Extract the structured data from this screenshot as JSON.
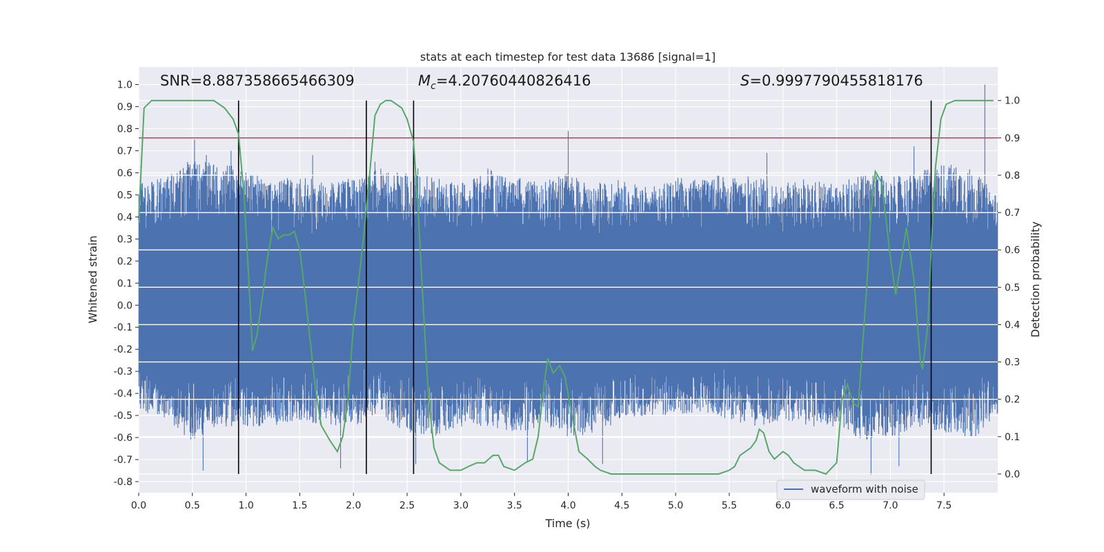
{
  "chart_data": {
    "type": "line",
    "title": "stats at each timestep for test data 13686 [signal=1]",
    "xlabel": "Time (s)",
    "ylabel_left": "Whitened strain",
    "ylabel_right": "Detection probability",
    "xlim": [
      0.0,
      8.0
    ],
    "ylim_left": [
      -0.85,
      1.08
    ],
    "ylim_right": [
      -0.05,
      1.09
    ],
    "x_ticks": [
      "0.0",
      "0.5",
      "1.0",
      "1.5",
      "2.0",
      "2.5",
      "3.0",
      "3.5",
      "4.0",
      "4.5",
      "5.0",
      "5.5",
      "6.0",
      "6.5",
      "7.0",
      "7.5"
    ],
    "y_left_ticks": [
      "-0.8",
      "-0.7",
      "-0.6",
      "-0.5",
      "-0.4",
      "-0.3",
      "-0.2",
      "-0.1",
      "0.0",
      "0.1",
      "0.2",
      "0.3",
      "0.4",
      "0.5",
      "0.6",
      "0.7",
      "0.8",
      "0.9",
      "1.0"
    ],
    "y_right_ticks": [
      "0.0",
      "0.1",
      "0.2",
      "0.3",
      "0.4",
      "0.5",
      "0.6",
      "0.7",
      "0.8",
      "0.9",
      "1.0"
    ],
    "grid": true,
    "legend": {
      "placement": "lower-right",
      "entries": [
        "waveform with noise"
      ]
    },
    "annotations": {
      "snr": "SNR=8.887358665466309",
      "mc_symbol": "M",
      "mc_sub": "c",
      "mc_value": "=4.20760440826416",
      "s_symbol": "S",
      "s_value": "=0.9997790455818176"
    },
    "threshold": {
      "value": 0.9,
      "axis": "right",
      "color": "#c44e52"
    },
    "vertical_lines": {
      "x": [
        0.93,
        2.12,
        2.56,
        7.38
      ],
      "y_range_right": [
        0.0,
        1.0
      ],
      "color": "#000000"
    },
    "series": [
      {
        "name": "waveform with noise",
        "axis": "left",
        "color": "#4c72b0",
        "envelope": {
          "x": [
            0.0,
            0.25,
            0.5,
            0.75,
            1.0,
            1.25,
            1.5,
            1.75,
            2.0,
            2.25,
            2.5,
            2.75,
            3.0,
            3.25,
            3.5,
            3.75,
            4.0,
            4.25,
            4.5,
            4.75,
            5.0,
            5.25,
            5.5,
            5.75,
            6.0,
            6.25,
            6.5,
            6.75,
            7.0,
            7.25,
            7.5,
            7.75,
            8.0
          ],
          "upper": [
            0.55,
            0.58,
            0.68,
            0.65,
            0.62,
            0.55,
            0.6,
            0.55,
            0.58,
            0.62,
            0.6,
            0.58,
            0.55,
            0.62,
            0.58,
            0.56,
            0.6,
            0.55,
            0.58,
            0.53,
            0.58,
            0.57,
            0.6,
            0.58,
            0.55,
            0.58,
            0.55,
            0.6,
            0.58,
            0.6,
            0.65,
            0.62,
            0.5
          ],
          "lower": [
            -0.48,
            -0.52,
            -0.62,
            -0.55,
            -0.55,
            -0.55,
            -0.52,
            -0.55,
            -0.55,
            -0.5,
            -0.58,
            -0.6,
            -0.55,
            -0.55,
            -0.58,
            -0.55,
            -0.6,
            -0.58,
            -0.52,
            -0.5,
            -0.5,
            -0.48,
            -0.52,
            -0.55,
            -0.52,
            -0.55,
            -0.55,
            -0.62,
            -0.6,
            -0.55,
            -0.58,
            -0.62,
            -0.5
          ],
          "peaks": [
            {
              "x": 0.02,
              "y": 0.63
            },
            {
              "x": 0.52,
              "y": 0.75
            },
            {
              "x": 0.63,
              "y": 0.68
            },
            {
              "x": 0.86,
              "y": 0.7
            },
            {
              "x": 1.62,
              "y": 0.68
            },
            {
              "x": 2.2,
              "y": 0.65
            },
            {
              "x": 2.6,
              "y": 0.62
            },
            {
              "x": 4.0,
              "y": 0.79
            },
            {
              "x": 5.85,
              "y": 0.69
            },
            {
              "x": 7.22,
              "y": 0.72
            },
            {
              "x": 7.88,
              "y": 1.0
            }
          ],
          "troughs": [
            {
              "x": 0.6,
              "y": -0.75
            },
            {
              "x": 1.88,
              "y": -0.74
            },
            {
              "x": 2.58,
              "y": -0.72
            },
            {
              "x": 3.62,
              "y": -0.71
            },
            {
              "x": 4.32,
              "y": -0.72
            },
            {
              "x": 6.82,
              "y": -0.77
            },
            {
              "x": 7.08,
              "y": -0.73
            }
          ]
        }
      },
      {
        "name": "detection probability",
        "axis": "right",
        "color": "#55a868",
        "x": [
          0.0,
          0.05,
          0.12,
          0.2,
          0.3,
          0.4,
          0.5,
          0.6,
          0.7,
          0.8,
          0.88,
          0.93,
          0.98,
          1.02,
          1.06,
          1.1,
          1.15,
          1.2,
          1.25,
          1.3,
          1.35,
          1.4,
          1.45,
          1.5,
          1.55,
          1.6,
          1.65,
          1.7,
          1.78,
          1.85,
          1.9,
          1.95,
          2.0,
          2.05,
          2.1,
          2.15,
          2.2,
          2.25,
          2.3,
          2.35,
          2.4,
          2.45,
          2.5,
          2.56,
          2.6,
          2.65,
          2.7,
          2.75,
          2.8,
          2.9,
          3.0,
          3.07,
          3.15,
          3.22,
          3.3,
          3.35,
          3.4,
          3.5,
          3.6,
          3.67,
          3.72,
          3.78,
          3.81,
          3.86,
          3.92,
          3.97,
          4.02,
          4.1,
          4.18,
          4.25,
          4.3,
          4.4,
          4.5,
          4.6,
          4.7,
          4.8,
          4.9,
          5.0,
          5.1,
          5.2,
          5.3,
          5.4,
          5.5,
          5.55,
          5.6,
          5.7,
          5.75,
          5.78,
          5.82,
          5.87,
          5.92,
          6.0,
          6.05,
          6.1,
          6.15,
          6.2,
          6.3,
          6.4,
          6.5,
          6.55,
          6.6,
          6.65,
          6.7,
          6.78,
          6.82,
          6.86,
          6.92,
          7.0,
          7.05,
          7.1,
          7.15,
          7.22,
          7.28,
          7.3,
          7.35,
          7.38,
          7.42,
          7.47,
          7.52,
          7.6,
          7.7,
          7.8,
          7.9,
          7.96
        ],
        "y": [
          0.68,
          0.98,
          1.0,
          1.0,
          1.0,
          1.0,
          1.0,
          1.0,
          1.0,
          0.98,
          0.95,
          0.91,
          0.75,
          0.55,
          0.33,
          0.37,
          0.47,
          0.58,
          0.66,
          0.63,
          0.64,
          0.64,
          0.65,
          0.6,
          0.48,
          0.35,
          0.22,
          0.13,
          0.09,
          0.06,
          0.1,
          0.2,
          0.4,
          0.52,
          0.65,
          0.8,
          0.96,
          0.99,
          1.0,
          1.0,
          0.99,
          0.98,
          0.95,
          0.89,
          0.72,
          0.45,
          0.2,
          0.07,
          0.03,
          0.01,
          0.01,
          0.02,
          0.03,
          0.03,
          0.05,
          0.05,
          0.02,
          0.01,
          0.03,
          0.04,
          0.1,
          0.25,
          0.31,
          0.27,
          0.29,
          0.26,
          0.18,
          0.06,
          0.04,
          0.02,
          0.01,
          0.0,
          0.0,
          0.0,
          0.0,
          0.0,
          0.0,
          0.0,
          0.0,
          0.0,
          0.0,
          0.0,
          0.01,
          0.02,
          0.05,
          0.07,
          0.09,
          0.12,
          0.11,
          0.06,
          0.04,
          0.06,
          0.05,
          0.03,
          0.02,
          0.01,
          0.01,
          0.0,
          0.03,
          0.2,
          0.24,
          0.19,
          0.18,
          0.5,
          0.7,
          0.81,
          0.78,
          0.58,
          0.48,
          0.57,
          0.66,
          0.52,
          0.3,
          0.28,
          0.4,
          0.6,
          0.82,
          0.95,
          0.99,
          1.0,
          1.0,
          1.0,
          1.0,
          1.0
        ]
      }
    ]
  }
}
